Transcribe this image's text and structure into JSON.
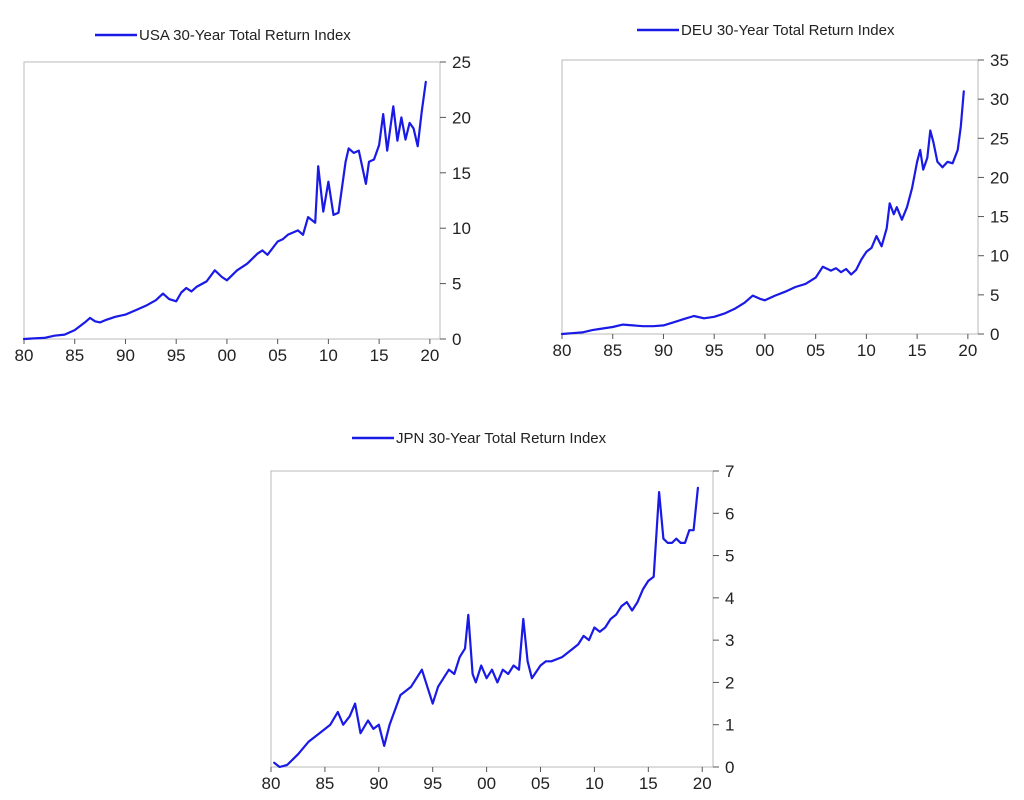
{
  "chart_data": [
    {
      "type": "line",
      "title": "",
      "xlabel": "",
      "ylabel": "",
      "legend": "USA 30-Year Total Return Index",
      "legend_position": "top",
      "color": "#1a1ae6",
      "xlim": [
        1980,
        2021
      ],
      "ylim": [
        0,
        25
      ],
      "x_ticks": [
        1980,
        1985,
        1990,
        1995,
        2000,
        2005,
        2010,
        2015,
        2020
      ],
      "x_tick_labels": [
        "80",
        "85",
        "90",
        "95",
        "00",
        "05",
        "10",
        "15",
        "20"
      ],
      "y_ticks": [
        0,
        5,
        10,
        15,
        20,
        25
      ],
      "y_tick_labels": [
        "0",
        "5",
        "10",
        "15",
        "20",
        "25"
      ],
      "x": [
        1980.0,
        1981.0,
        1982.0,
        1983.0,
        1984.0,
        1985.0,
        1986.0,
        1986.5,
        1987.0,
        1987.5,
        1988.0,
        1989.0,
        1990.0,
        1991.0,
        1992.0,
        1993.0,
        1993.7,
        1994.3,
        1995.0,
        1995.5,
        1996.0,
        1996.5,
        1997.0,
        1998.0,
        1998.8,
        1999.5,
        2000.0,
        2001.0,
        2002.0,
        2003.0,
        2003.5,
        2004.0,
        2005.0,
        2005.5,
        2006.0,
        2007.0,
        2007.5,
        2008.0,
        2008.7,
        2009.0,
        2009.5,
        2010.0,
        2010.5,
        2011.0,
        2011.7,
        2012.0,
        2012.5,
        2013.0,
        2013.7,
        2014.0,
        2014.5,
        2015.0,
        2015.4,
        2015.8,
        2016.4,
        2016.8,
        2017.2,
        2017.6,
        2018.0,
        2018.4,
        2018.8,
        2019.2,
        2019.6
      ],
      "y": [
        0.0,
        0.05,
        0.1,
        0.3,
        0.4,
        0.8,
        1.5,
        1.9,
        1.6,
        1.5,
        1.7,
        2.0,
        2.2,
        2.6,
        3.0,
        3.5,
        4.1,
        3.6,
        3.4,
        4.2,
        4.6,
        4.3,
        4.7,
        5.2,
        6.2,
        5.6,
        5.3,
        6.2,
        6.8,
        7.7,
        8.0,
        7.6,
        8.8,
        9.0,
        9.4,
        9.8,
        9.4,
        11.0,
        10.5,
        15.6,
        11.5,
        14.2,
        11.2,
        11.4,
        16.0,
        17.2,
        16.8,
        17.0,
        14.0,
        16.0,
        16.2,
        17.5,
        20.3,
        17.0,
        21.0,
        17.9,
        20.0,
        18.0,
        19.5,
        19.0,
        17.4,
        20.5,
        23.2
      ]
    },
    {
      "type": "line",
      "title": "",
      "xlabel": "",
      "ylabel": "",
      "legend": "DEU 30-Year Total Return Index",
      "legend_position": "top",
      "color": "#1a1ae6",
      "xlim": [
        1980,
        2021
      ],
      "ylim": [
        0,
        35
      ],
      "x_ticks": [
        1980,
        1985,
        1990,
        1995,
        2000,
        2005,
        2010,
        2015,
        2020
      ],
      "x_tick_labels": [
        "80",
        "85",
        "90",
        "95",
        "00",
        "05",
        "10",
        "15",
        "20"
      ],
      "y_ticks": [
        0,
        5,
        10,
        15,
        20,
        25,
        30,
        35
      ],
      "y_tick_labels": [
        "0",
        "5",
        "10",
        "15",
        "20",
        "25",
        "30",
        "35"
      ],
      "x": [
        1980.0,
        1981.0,
        1982.0,
        1983.0,
        1984.0,
        1985.0,
        1986.0,
        1987.0,
        1988.0,
        1989.0,
        1990.0,
        1991.0,
        1992.0,
        1993.0,
        1994.0,
        1995.0,
        1996.0,
        1997.0,
        1998.0,
        1998.8,
        1999.5,
        2000.0,
        2001.0,
        2002.0,
        2003.0,
        2004.0,
        2005.0,
        2005.7,
        2006.5,
        2007.0,
        2007.5,
        2008.0,
        2008.5,
        2009.0,
        2009.5,
        2010.0,
        2010.5,
        2011.0,
        2011.5,
        2012.0,
        2012.3,
        2012.7,
        2013.0,
        2013.5,
        2014.0,
        2014.5,
        2015.0,
        2015.3,
        2015.6,
        2016.0,
        2016.3,
        2016.6,
        2017.0,
        2017.5,
        2018.0,
        2018.5,
        2019.0,
        2019.3,
        2019.6
      ],
      "y": [
        0.0,
        0.1,
        0.2,
        0.5,
        0.7,
        0.9,
        1.2,
        1.1,
        1.0,
        1.0,
        1.1,
        1.5,
        1.9,
        2.3,
        2.0,
        2.2,
        2.6,
        3.2,
        4.0,
        4.9,
        4.5,
        4.3,
        4.9,
        5.4,
        6.0,
        6.4,
        7.2,
        8.6,
        8.1,
        8.4,
        7.9,
        8.3,
        7.6,
        8.2,
        9.5,
        10.5,
        11.0,
        12.5,
        11.2,
        13.5,
        16.7,
        15.3,
        16.2,
        14.6,
        16.2,
        18.6,
        22.0,
        23.5,
        21.0,
        22.5,
        26.0,
        24.5,
        22.0,
        21.3,
        22.0,
        21.8,
        23.5,
        26.5,
        31.0
      ]
    },
    {
      "type": "line",
      "title": "",
      "xlabel": "",
      "ylabel": "",
      "legend": "JPN 30-Year Total Return Index",
      "legend_position": "top",
      "color": "#1a1ae6",
      "xlim": [
        1980,
        2021
      ],
      "ylim": [
        0,
        7
      ],
      "x_ticks": [
        1980,
        1985,
        1990,
        1995,
        2000,
        2005,
        2010,
        2015,
        2020
      ],
      "x_tick_labels": [
        "80",
        "85",
        "90",
        "95",
        "00",
        "05",
        "10",
        "15",
        "20"
      ],
      "y_ticks": [
        0,
        1,
        2,
        3,
        4,
        5,
        6,
        7
      ],
      "y_tick_labels": [
        "0",
        "1",
        "2",
        "3",
        "4",
        "5",
        "6",
        "7"
      ],
      "x": [
        1980.3,
        1980.8,
        1981.5,
        1982.5,
        1983.5,
        1984.5,
        1985.5,
        1986.2,
        1986.7,
        1987.3,
        1987.8,
        1988.3,
        1989.0,
        1989.5,
        1990.0,
        1990.5,
        1991.0,
        1992.0,
        1993.0,
        1994.0,
        1994.5,
        1995.0,
        1995.5,
        1996.0,
        1996.5,
        1997.0,
        1997.5,
        1998.0,
        1998.3,
        1998.7,
        1999.0,
        1999.5,
        2000.0,
        2000.5,
        2001.0,
        2001.5,
        2002.0,
        2002.5,
        2003.0,
        2003.4,
        2003.8,
        2004.2,
        2005.0,
        2005.5,
        2006.0,
        2007.0,
        2008.0,
        2008.5,
        2009.0,
        2009.5,
        2010.0,
        2010.5,
        2011.0,
        2011.5,
        2012.0,
        2012.5,
        2013.0,
        2013.5,
        2014.0,
        2014.5,
        2015.0,
        2015.5,
        2016.0,
        2016.4,
        2016.8,
        2017.2,
        2017.6,
        2018.0,
        2018.4,
        2018.8,
        2019.2,
        2019.6
      ],
      "y": [
        0.1,
        0.0,
        0.05,
        0.3,
        0.6,
        0.8,
        1.0,
        1.3,
        1.0,
        1.2,
        1.5,
        0.8,
        1.1,
        0.9,
        1.0,
        0.5,
        1.0,
        1.7,
        1.9,
        2.3,
        1.9,
        1.5,
        1.9,
        2.1,
        2.3,
        2.2,
        2.6,
        2.8,
        3.6,
        2.2,
        2.0,
        2.4,
        2.1,
        2.3,
        2.0,
        2.3,
        2.2,
        2.4,
        2.3,
        3.5,
        2.5,
        2.1,
        2.4,
        2.5,
        2.5,
        2.6,
        2.8,
        2.9,
        3.1,
        3.0,
        3.3,
        3.2,
        3.3,
        3.5,
        3.6,
        3.8,
        3.9,
        3.7,
        3.9,
        4.2,
        4.4,
        4.5,
        6.5,
        5.4,
        5.3,
        5.3,
        5.4,
        5.3,
        5.3,
        5.6,
        5.6,
        6.6
      ]
    }
  ]
}
